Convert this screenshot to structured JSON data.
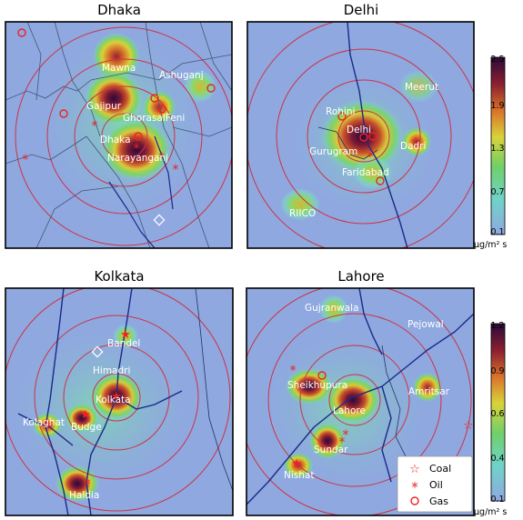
{
  "panels": [
    {
      "title": "Dhaka",
      "cities": [
        "Mawna",
        "Ashuganj",
        "Gajipur",
        "GhorasalFeni",
        "Dhaka",
        "Narayanganj"
      ],
      "sources": [
        {
          "kind": "gas"
        },
        {
          "kind": "gas"
        },
        {
          "kind": "gas"
        },
        {
          "kind": "gas"
        },
        {
          "kind": "gas"
        },
        {
          "kind": "gas"
        },
        {
          "kind": "oil"
        },
        {
          "kind": "oil"
        },
        {
          "kind": "oil"
        },
        {
          "kind": "oil"
        },
        {
          "kind": "oil"
        },
        {
          "kind": "diamond"
        }
      ]
    },
    {
      "title": "Delhi",
      "cities": [
        "Meerut",
        "Rohini",
        "Delhi",
        "Dadri",
        "Gurugram",
        "Faridabad",
        "RIICO"
      ],
      "sources": [
        {
          "kind": "gas"
        },
        {
          "kind": "gas"
        },
        {
          "kind": "gas"
        },
        {
          "kind": "coal"
        },
        {
          "kind": "oil"
        },
        {
          "kind": "gas"
        }
      ]
    },
    {
      "title": "Kolkata",
      "cities": [
        "Bandel",
        "Himadri",
        "Kolkata",
        "Kolaghat",
        "Budge",
        "Haldia"
      ],
      "sources": [
        {
          "kind": "coal"
        },
        {
          "kind": "diamond"
        },
        {
          "kind": "coal"
        },
        {
          "kind": "coal"
        },
        {
          "kind": "coal"
        },
        {
          "kind": "oil"
        }
      ]
    },
    {
      "title": "Lahore",
      "cities": [
        "Gujranwala",
        "Pejowal",
        "Sheikhupura",
        "Amritsar",
        "Lahore",
        "Sundar",
        "Nishat"
      ],
      "sources": [
        {
          "kind": "oil"
        },
        {
          "kind": "gas"
        },
        {
          "kind": "coal"
        },
        {
          "kind": "oil"
        },
        {
          "kind": "oil"
        },
        {
          "kind": "coal"
        }
      ]
    }
  ],
  "colorbars": [
    {
      "ticks": [
        "2.5",
        "1.9",
        "1.3",
        "0.7",
        "0.1"
      ],
      "unit": "μg/m² s"
    },
    {
      "ticks": [
        "1.2",
        "0.9",
        "0.6",
        "0.4",
        "0.1"
      ],
      "unit": "μg/m² s"
    }
  ],
  "legend": {
    "items": [
      {
        "label": "Coal",
        "kind": "coal"
      },
      {
        "label": "Oil",
        "kind": "oil"
      },
      {
        "label": "Gas",
        "kind": "gas"
      }
    ]
  },
  "colors": {
    "background": "#8fa8e0",
    "marker": "#ee2222",
    "ring": "#cc3344"
  }
}
